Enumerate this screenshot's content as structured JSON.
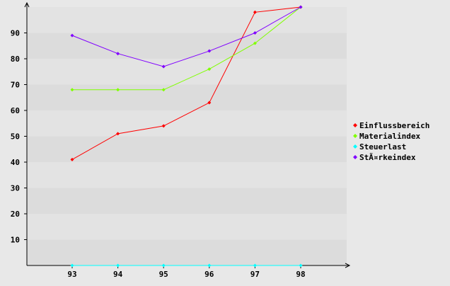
{
  "chart_data": {
    "type": "line",
    "title": "",
    "xlabel": "",
    "ylabel": "",
    "x": [
      "93",
      "94",
      "95",
      "96",
      "97",
      "98"
    ],
    "ylim": [
      0,
      100
    ],
    "yticks": [
      "10",
      "20",
      "30",
      "40",
      "50",
      "60",
      "70",
      "80",
      "90"
    ],
    "grid": "alternating horizontal bands",
    "legend_position": "right",
    "series": [
      {
        "name": "Einflussbereich",
        "color": "#ff0000",
        "values": [
          41,
          51,
          54,
          63,
          98,
          100
        ]
      },
      {
        "name": "Materialindex",
        "color": "#80ff00",
        "values": [
          68,
          68,
          68,
          76,
          86,
          100
        ]
      },
      {
        "name": "Steuerlast",
        "color": "#00ffff",
        "values": [
          0,
          0,
          0,
          0,
          0,
          0
        ]
      },
      {
        "name": "StÃ¤rkeindex",
        "color": "#8000ff",
        "values": [
          89,
          82,
          77,
          83,
          90,
          100
        ]
      }
    ]
  }
}
